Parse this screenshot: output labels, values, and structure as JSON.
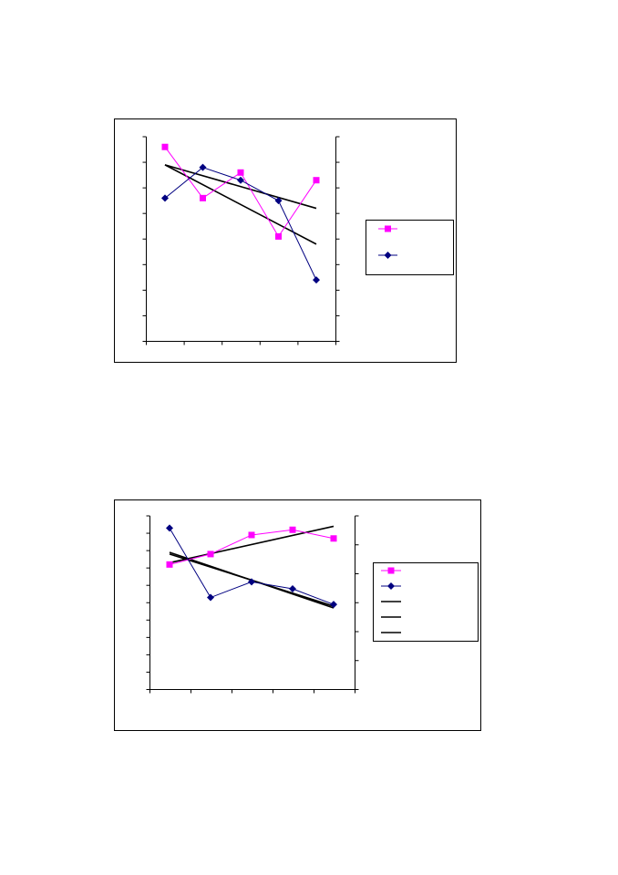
{
  "chart_data": [
    {
      "type": "line",
      "x": [
        1,
        2,
        3,
        4,
        5
      ],
      "grid": false,
      "legend": "right",
      "series": [
        {
          "values": [
            7.6,
            5.6,
            6.6,
            4.1,
            6.3
          ],
          "color": "#ff00ff",
          "marker": "square",
          "axis": "left"
        },
        {
          "values": [
            5.6,
            6.8,
            6.3,
            5.5,
            2.4
          ],
          "color": "#000080",
          "marker": "diamond",
          "axis": "left"
        }
      ],
      "trendlines": [
        {
          "values": [
            6.9,
            3.8
          ],
          "color": "#000000"
        },
        {
          "values": [
            6.9,
            5.2
          ],
          "color": "#000000"
        }
      ],
      "ylim": [
        0,
        8
      ],
      "y2lim": [
        0,
        8
      ]
    },
    {
      "type": "line",
      "x": [
        1,
        2,
        3,
        4,
        5
      ],
      "grid": false,
      "legend": "right",
      "series": [
        {
          "values": [
            7.2,
            7.8,
            8.9,
            9.2,
            8.7
          ],
          "color": "#ff00ff",
          "marker": "square",
          "axis": "left"
        },
        {
          "values": [
            9.3,
            5.3,
            6.2,
            5.8,
            4.9
          ],
          "color": "#000080",
          "marker": "diamond",
          "axis": "left"
        }
      ],
      "trendlines": [
        {
          "values": [
            7.3,
            9.4
          ],
          "color": "#000000"
        },
        {
          "values": [
            7.9,
            4.7
          ],
          "color": "#000000"
        },
        {
          "values": [
            7.8,
            4.8
          ],
          "color": "#000000"
        }
      ],
      "ylim": [
        0,
        10
      ],
      "y2lim": [
        0,
        6
      ]
    }
  ]
}
